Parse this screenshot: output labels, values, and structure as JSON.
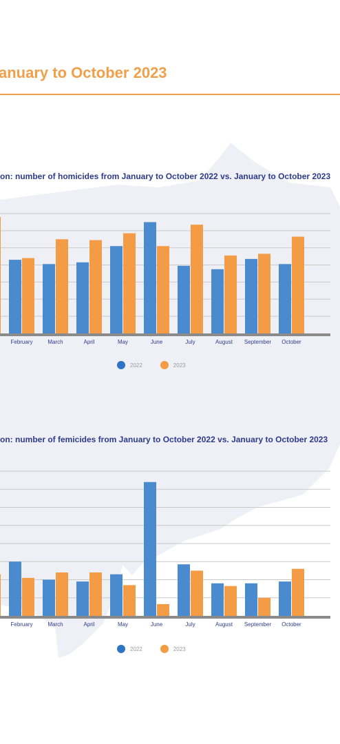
{
  "page": {
    "title": "anuary to October 2023"
  },
  "colors": {
    "accent": "#f0a04b",
    "series_2022": "#4a8bcf",
    "series_2023": "#f39c45",
    "title_text": "#2d3b8c",
    "map_bg": "#eef0f5"
  },
  "chart_data": [
    {
      "type": "bar",
      "title": "on: number of homicides from January to October 2022 vs. January to October 2023",
      "categories": [
        "February",
        "March",
        "April",
        "May",
        "June",
        "July",
        "August",
        "September",
        "October"
      ],
      "series": [
        {
          "name": "2022",
          "values": [
            4.3,
            4.05,
            4.15,
            5.1,
            6.5,
            3.95,
            3.75,
            4.35,
            4.05
          ]
        },
        {
          "name": "2023",
          "values": [
            4.4,
            5.5,
            5.45,
            5.85,
            5.1,
            6.35,
            4.55,
            4.65,
            5.65
          ]
        }
      ],
      "ylim": [
        0,
        7
      ],
      "grid": true,
      "legend": "bottom-center"
    },
    {
      "type": "bar",
      "title": "on: number of femicides from January to October 2022 vs. January to October 2023",
      "categories": [
        "February",
        "March",
        "April",
        "May",
        "June",
        "July",
        "August",
        "September",
        "October"
      ],
      "series": [
        {
          "name": "2022",
          "values": [
            3.0,
            2.0,
            1.9,
            2.3,
            7.4,
            2.85,
            1.8,
            1.8,
            1.9
          ]
        },
        {
          "name": "2023",
          "values": [
            2.1,
            2.4,
            2.4,
            1.7,
            0.65,
            2.5,
            1.65,
            1.0,
            2.6
          ]
        }
      ],
      "ylim": [
        0,
        8
      ],
      "grid": true,
      "legend": "bottom-center"
    }
  ]
}
